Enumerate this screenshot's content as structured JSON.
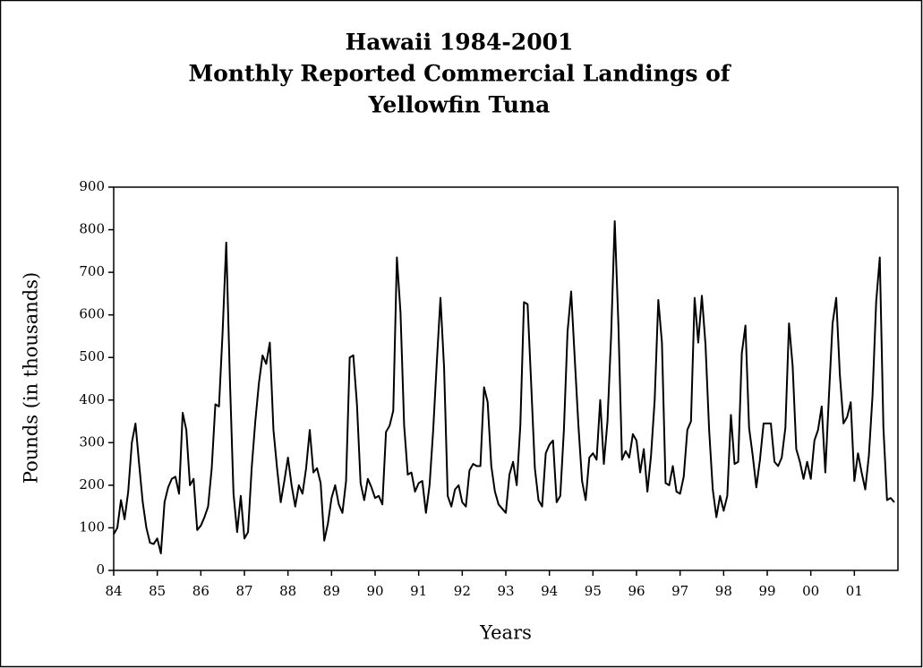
{
  "chart_data": {
    "type": "line",
    "title": [
      "Hawaii 1984-2001",
      "Monthly Reported Commercial Landings of",
      "Yellowfin Tuna"
    ],
    "x_label": "Years",
    "y_label": "Pounds (in thousands)",
    "categories": [
      "84",
      null,
      null,
      null,
      null,
      null,
      null,
      null,
      null,
      null,
      null,
      null,
      "85",
      null,
      null,
      null,
      null,
      null,
      null,
      null,
      null,
      null,
      null,
      null,
      "86",
      null,
      null,
      null,
      null,
      null,
      null,
      null,
      null,
      null,
      null,
      null,
      "87",
      null,
      null,
      null,
      null,
      null,
      null,
      null,
      null,
      null,
      null,
      null,
      "88",
      null,
      null,
      null,
      null,
      null,
      null,
      null,
      null,
      null,
      null,
      null,
      "89",
      null,
      null,
      null,
      null,
      null,
      null,
      null,
      null,
      null,
      null,
      null,
      "90",
      null,
      null,
      null,
      null,
      null,
      null,
      null,
      null,
      null,
      null,
      null,
      "91",
      null,
      null,
      null,
      null,
      null,
      null,
      null,
      null,
      null,
      null,
      null,
      "92",
      null,
      null,
      null,
      null,
      null,
      null,
      null,
      null,
      null,
      null,
      null,
      "93",
      null,
      null,
      null,
      null,
      null,
      null,
      null,
      null,
      null,
      null,
      null,
      "94",
      null,
      null,
      null,
      null,
      null,
      null,
      null,
      null,
      null,
      null,
      null,
      "95",
      null,
      null,
      null,
      null,
      null,
      null,
      null,
      null,
      null,
      null,
      null,
      "96",
      null,
      null,
      null,
      null,
      null,
      null,
      null,
      null,
      null,
      null,
      null,
      "97",
      null,
      null,
      null,
      null,
      null,
      null,
      null,
      null,
      null,
      null,
      null,
      "98",
      null,
      null,
      null,
      null,
      null,
      null,
      null,
      null,
      null,
      null,
      null,
      "99",
      null,
      null,
      null,
      null,
      null,
      null,
      null,
      null,
      null,
      null,
      null,
      "00",
      null,
      null,
      null,
      null,
      null,
      null,
      null,
      null,
      null,
      null,
      null,
      "01",
      null,
      null,
      null,
      null,
      null,
      null,
      null,
      null,
      null,
      null,
      null
    ],
    "values": [
      85,
      100,
      165,
      120,
      185,
      300,
      345,
      250,
      160,
      100,
      65,
      62,
      75,
      40,
      160,
      195,
      215,
      220,
      180,
      370,
      330,
      200,
      215,
      95,
      105,
      125,
      150,
      240,
      390,
      385,
      560,
      770,
      450,
      180,
      90,
      175,
      75,
      90,
      240,
      350,
      440,
      505,
      485,
      535,
      330,
      240,
      160,
      210,
      265,
      200,
      150,
      200,
      180,
      240,
      330,
      230,
      240,
      205,
      70,
      110,
      170,
      200,
      155,
      135,
      210,
      500,
      505,
      390,
      205,
      165,
      215,
      195,
      170,
      175,
      155,
      325,
      340,
      375,
      735,
      605,
      340,
      225,
      230,
      185,
      205,
      210,
      135,
      200,
      330,
      490,
      640,
      475,
      175,
      150,
      190,
      200,
      160,
      150,
      235,
      250,
      245,
      245,
      430,
      395,
      245,
      185,
      155,
      145,
      135,
      225,
      255,
      200,
      340,
      630,
      625,
      435,
      240,
      165,
      150,
      275,
      295,
      305,
      160,
      175,
      330,
      560,
      655,
      495,
      340,
      210,
      165,
      265,
      275,
      260,
      400,
      250,
      350,
      550,
      820,
      580,
      260,
      280,
      265,
      320,
      305,
      230,
      285,
      185,
      270,
      400,
      635,
      535,
      205,
      200,
      245,
      185,
      180,
      220,
      330,
      350,
      640,
      535,
      645,
      530,
      330,
      190,
      125,
      175,
      140,
      175,
      365,
      250,
      255,
      510,
      575,
      335,
      270,
      195,
      260,
      345,
      345,
      345,
      255,
      245,
      265,
      335,
      580,
      480,
      285,
      255,
      215,
      255,
      215,
      305,
      330,
      385,
      230,
      410,
      580,
      640,
      460,
      345,
      360,
      395,
      210,
      275,
      230,
      190,
      270,
      410,
      630,
      735,
      335,
      165,
      170,
      160
    ],
    "color": "#000000",
    "ylim": [
      0,
      900
    ],
    "yticks": [
      0,
      100,
      200,
      300,
      400,
      500,
      600,
      700,
      800,
      900
    ],
    "grid": false
  }
}
